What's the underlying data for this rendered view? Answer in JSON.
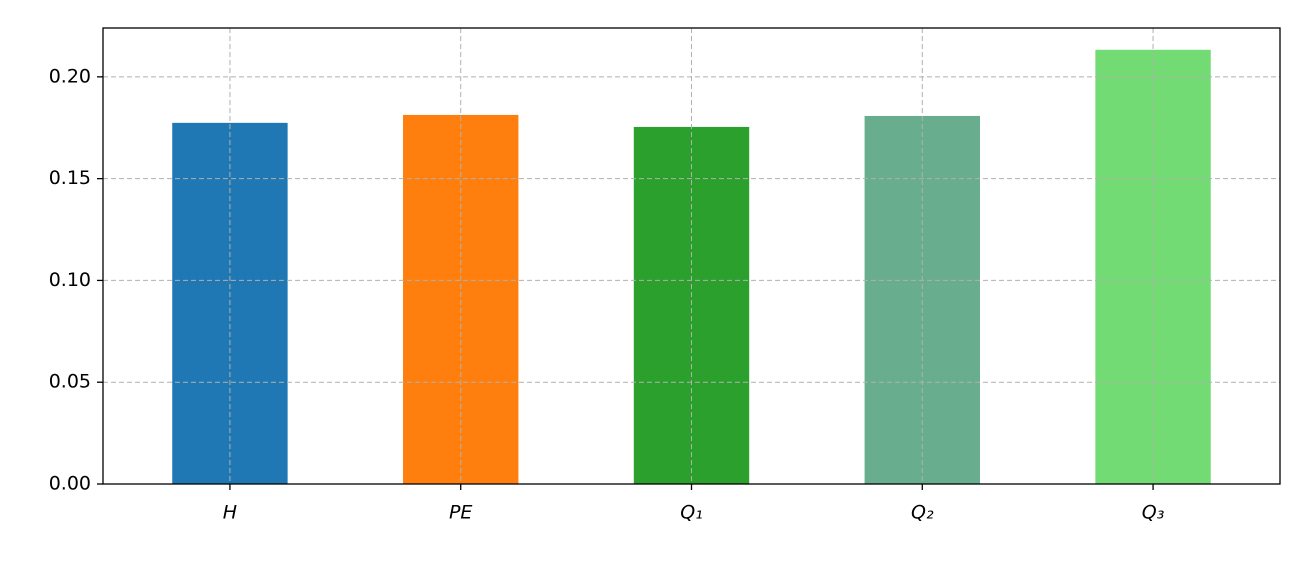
{
  "chart_data": {
    "type": "bar",
    "categories": [
      "H",
      "PE",
      "Q₁",
      "Q₂",
      "Q₃"
    ],
    "values": [
      0.1774,
      0.1813,
      0.1754,
      0.1808,
      0.2133
    ],
    "colors": [
      "#1f77b4",
      "#ff7f0e",
      "#2ca02c",
      "#69ad8f",
      "#73db73"
    ],
    "ylim": [
      0,
      0.224
    ],
    "yticks": [
      {
        "value": 0,
        "label": "0.00"
      },
      {
        "value": 0.05,
        "label": "0.05"
      },
      {
        "value": 0.1,
        "label": "0.10"
      },
      {
        "value": 0.15,
        "label": "0.15"
      },
      {
        "value": 0.2,
        "label": "0.20"
      }
    ],
    "grid": true
  }
}
